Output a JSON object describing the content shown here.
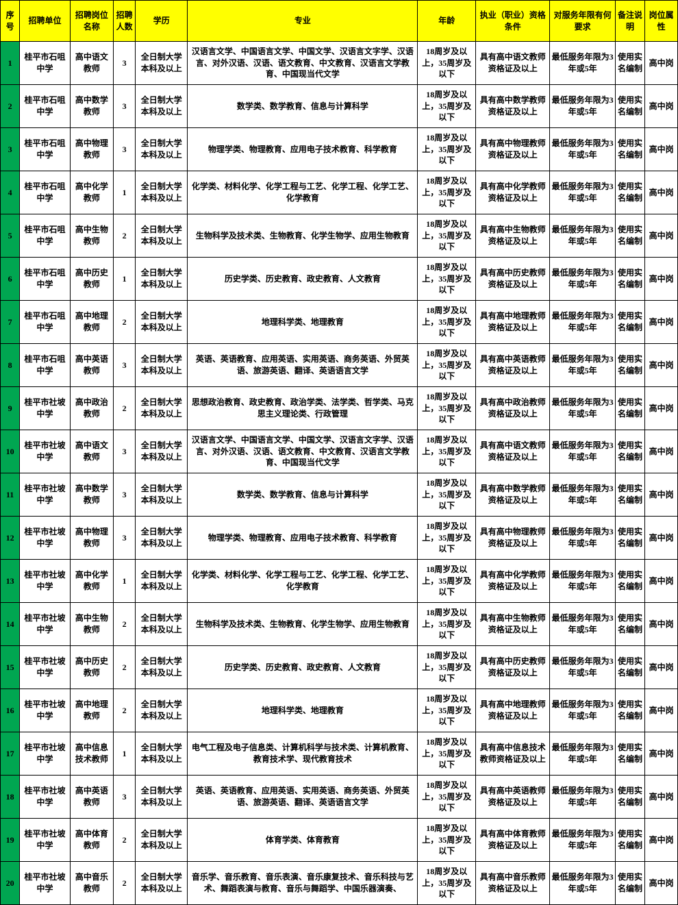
{
  "colors": {
    "header_bg": "#ffff00",
    "serial_bg": "#00a651",
    "border": "#000000",
    "text": "#000000"
  },
  "columns": [
    {
      "key": "serial",
      "label": "序号"
    },
    {
      "key": "unit",
      "label": "招聘单位"
    },
    {
      "key": "position",
      "label": "招聘岗位名称"
    },
    {
      "key": "count",
      "label": "招聘人数"
    },
    {
      "key": "edu",
      "label": "学历"
    },
    {
      "key": "major",
      "label": "专业"
    },
    {
      "key": "age",
      "label": "年龄"
    },
    {
      "key": "qual",
      "label": "执业（职业）资格条件"
    },
    {
      "key": "service",
      "label": "对服务年限有何要求"
    },
    {
      "key": "remark",
      "label": "备注说明"
    },
    {
      "key": "type",
      "label": "岗位属性"
    }
  ],
  "rows": [
    {
      "serial": "1",
      "unit": "桂平市石咀中学",
      "position": "高中语文教师",
      "count": "3",
      "edu": "全日制大学本科及以上",
      "major": "汉语言文学、中国语言文学、中国文学、汉语言文字学、汉语言、对外汉语、汉语、语文教育、中文教育、汉语言文学教育、中国现当代文学",
      "age": "18周岁及以上，35周岁及以下",
      "qual": "具有高中语文教师资格证及以上",
      "service": "最低服务年限为3年或5年",
      "remark": "使用实名编制",
      "type": "高中岗"
    },
    {
      "serial": "2",
      "unit": "桂平市石咀中学",
      "position": "高中数学教师",
      "count": "3",
      "edu": "全日制大学本科及以上",
      "major": "数学类、数学教育、信息与计算科学",
      "age": "18周岁及以上，35周岁及以下",
      "qual": "具有高中数学教师资格证及以上",
      "service": "最低服务年限为3年或5年",
      "remark": "使用实名编制",
      "type": "高中岗"
    },
    {
      "serial": "3",
      "unit": "桂平市石咀中学",
      "position": "高中物理教师",
      "count": "3",
      "edu": "全日制大学本科及以上",
      "major": "物理学类、物理教育、应用电子技术教育、科学教育",
      "age": "18周岁及以上，35周岁及以下",
      "qual": "具有高中物理教师资格证及以上",
      "service": "最低服务年限为3年或5年",
      "remark": "使用实名编制",
      "type": "高中岗"
    },
    {
      "serial": "4",
      "unit": "桂平市石咀中学",
      "position": "高中化学教师",
      "count": "1",
      "edu": "全日制大学本科及以上",
      "major": "化学类、材料化学、化学工程与工艺、化学工程、化学工艺、化学教育",
      "age": "18周岁及以上，35周岁及以下",
      "qual": "具有高中化学教师资格证及以上",
      "service": "最低服务年限为3年或5年",
      "remark": "使用实名编制",
      "type": "高中岗"
    },
    {
      "serial": "5",
      "unit": "桂平市石咀中学",
      "position": "高中生物教师",
      "count": "2",
      "edu": "全日制大学本科及以上",
      "major": "生物科学及技术类、生物教育、化学生物学、应用生物教育",
      "age": "18周岁及以上，35周岁及以下",
      "qual": "具有高中生物教师资格证及以上",
      "service": "最低服务年限为3年或5年",
      "remark": "使用实名编制",
      "type": "高中岗"
    },
    {
      "serial": "6",
      "unit": "桂平市石咀中学",
      "position": "高中历史教师",
      "count": "1",
      "edu": "全日制大学本科及以上",
      "major": "历史学类、历史教育、政史教育、人文教育",
      "age": "18周岁及以上，35周岁及以下",
      "qual": "具有高中历史教师资格证及以上",
      "service": "最低服务年限为3年或5年",
      "remark": "使用实名编制",
      "type": "高中岗"
    },
    {
      "serial": "7",
      "unit": "桂平市石咀中学",
      "position": "高中地理教师",
      "count": "2",
      "edu": "全日制大学本科及以上",
      "major": "地理科学类、地理教育",
      "age": "18周岁及以上，35周岁及以下",
      "qual": "具有高中地理教师资格证及以上",
      "service": "最低服务年限为3年或5年",
      "remark": "使用实名编制",
      "type": "高中岗"
    },
    {
      "serial": "8",
      "unit": "桂平市石咀中学",
      "position": "高中英语教师",
      "count": "3",
      "edu": "全日制大学本科及以上",
      "major": "英语、英语教育、应用英语、实用英语、商务英语、外贸英语、旅游英语、翻译、英语语言文学",
      "age": "18周岁及以上，35周岁及以下",
      "qual": "具有高中英语教师资格证及以上",
      "service": "最低服务年限为3年或5年",
      "remark": "使用实名编制",
      "type": "高中岗"
    },
    {
      "serial": "9",
      "unit": "桂平市社坡中学",
      "position": "高中政治教师",
      "count": "2",
      "edu": "全日制大学本科及以上",
      "major": "思想政治教育、政史教育、政治学类、法学类、哲学类、马克思主义理论类、行政管理",
      "age": "18周岁及以上，35周岁及以下",
      "qual": "具有高中政治教师资格证及以上",
      "service": "最低服务年限为3年或5年",
      "remark": "使用实名编制",
      "type": "高中岗"
    },
    {
      "serial": "10",
      "unit": "桂平市社坡中学",
      "position": "高中语文教师",
      "count": "3",
      "edu": "全日制大学本科及以上",
      "major": "汉语言文学、中国语言文学、中国文学、汉语言文字学、汉语言、对外汉语、汉语、语文教育、中文教育、汉语言文学教育、中国现当代文学",
      "age": "18周岁及以上，35周岁及以下",
      "qual": "具有高中语文教师资格证及以上",
      "service": "最低服务年限为3年或5年",
      "remark": "使用实名编制",
      "type": "高中岗"
    },
    {
      "serial": "11",
      "unit": "桂平市社坡中学",
      "position": "高中数学教师",
      "count": "3",
      "edu": "全日制大学本科及以上",
      "major": "数学类、数学教育、信息与计算科学",
      "age": "18周岁及以上，35周岁及以下",
      "qual": "具有高中数学教师资格证及以上",
      "service": "最低服务年限为3年或5年",
      "remark": "使用实名编制",
      "type": "高中岗"
    },
    {
      "serial": "12",
      "unit": "桂平市社坡中学",
      "position": "高中物理教师",
      "count": "3",
      "edu": "全日制大学本科及以上",
      "major": "物理学类、物理教育、应用电子技术教育、科学教育",
      "age": "18周岁及以上，35周岁及以下",
      "qual": "具有高中物理教师资格证及以上",
      "service": "最低服务年限为3年或5年",
      "remark": "使用实名编制",
      "type": "高中岗"
    },
    {
      "serial": "13",
      "unit": "桂平市社坡中学",
      "position": "高中化学教师",
      "count": "1",
      "edu": "全日制大学本科及以上",
      "major": "化学类、材料化学、化学工程与工艺、化学工程、化学工艺、化学教育",
      "age": "18周岁及以上，35周岁及以下",
      "qual": "具有高中化学教师资格证及以上",
      "service": "最低服务年限为3年或5年",
      "remark": "使用实名编制",
      "type": "高中岗"
    },
    {
      "serial": "14",
      "unit": "桂平市社坡中学",
      "position": "高中生物教师",
      "count": "2",
      "edu": "全日制大学本科及以上",
      "major": "生物科学及技术类、生物教育、化学生物学、应用生物教育",
      "age": "18周岁及以上，35周岁及以下",
      "qual": "具有高中生物教师资格证及以上",
      "service": "最低服务年限为3年或5年",
      "remark": "使用实名编制",
      "type": "高中岗"
    },
    {
      "serial": "15",
      "unit": "桂平市社坡中学",
      "position": "高中历史教师",
      "count": "2",
      "edu": "全日制大学本科及以上",
      "major": "历史学类、历史教育、政史教育、人文教育",
      "age": "18周岁及以上，35周岁及以下",
      "qual": "具有高中历史教师资格证及以上",
      "service": "最低服务年限为3年或5年",
      "remark": "使用实名编制",
      "type": "高中岗"
    },
    {
      "serial": "16",
      "unit": "桂平市社坡中学",
      "position": "高中地理教师",
      "count": "2",
      "edu": "全日制大学本科及以上",
      "major": "地理科学类、地理教育",
      "age": "18周岁及以上，35周岁及以下",
      "qual": "具有高中地理教师资格证及以上",
      "service": "最低服务年限为3年或5年",
      "remark": "使用实名编制",
      "type": "高中岗"
    },
    {
      "serial": "17",
      "unit": "桂平市社坡中学",
      "position": "高中信息技术教师",
      "count": "1",
      "edu": "全日制大学本科及以上",
      "major": "电气工程及电子信息类、计算机科学与技术类、计算机教育、教育技术学、现代教育技术",
      "age": "18周岁及以上，35周岁及以下",
      "qual": "具有高中信息技术教师资格证及以上",
      "service": "最低服务年限为3年或5年",
      "remark": "使用实名编制",
      "type": "高中岗"
    },
    {
      "serial": "18",
      "unit": "桂平市社坡中学",
      "position": "高中英语教师",
      "count": "3",
      "edu": "全日制大学本科及以上",
      "major": "英语、英语教育、应用英语、实用英语、商务英语、外贸英语、旅游英语、翻译、英语语言文学",
      "age": "18周岁及以上，35周岁及以下",
      "qual": "具有高中英语教师资格证及以上",
      "service": "最低服务年限为3年或5年",
      "remark": "使用实名编制",
      "type": "高中岗"
    },
    {
      "serial": "19",
      "unit": "桂平市社坡中学",
      "position": "高中体育教师",
      "count": "2",
      "edu": "全日制大学本科及以上",
      "major": "体育学类、体育教育",
      "age": "18周岁及以上，35周岁及以下",
      "qual": "具有高中体育教师资格证及以上",
      "service": "最低服务年限为3年或5年",
      "remark": "使用实名编制",
      "type": "高中岗"
    },
    {
      "serial": "20",
      "unit": "桂平市社坡中学",
      "position": "高中音乐教师",
      "count": "2",
      "edu": "全日制大学本科及以上",
      "major": "音乐学、音乐教育、音乐表演、音乐康复技术、音乐科技与艺术、舞蹈表演与教育、音乐与舞蹈学、中国乐器演奏、",
      "age": "18周岁及以上，35周岁及以下",
      "qual": "具有高中音乐教师资格证及以上",
      "service": "最低服务年限为3年或5年",
      "remark": "使用实名编制",
      "type": "高中岗"
    }
  ]
}
